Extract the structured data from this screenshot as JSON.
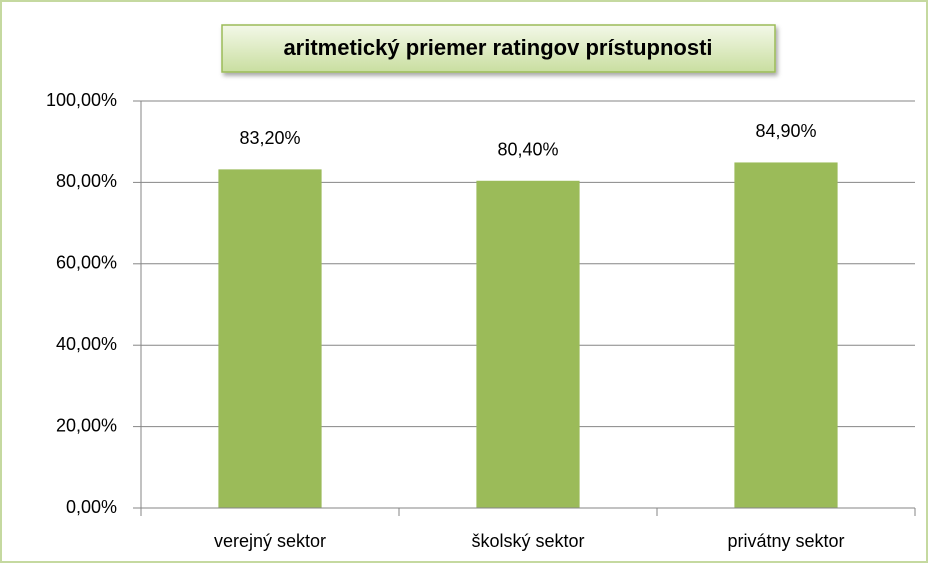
{
  "chart_data": {
    "type": "bar",
    "title": "aritmetický priemer ratingov prístupnosti",
    "categories": [
      "verejný sektor",
      "školský sektor",
      "privátny sektor"
    ],
    "values": [
      83.2,
      80.4,
      84.9
    ],
    "value_labels": [
      "83,20%",
      "80,40%",
      "84,90%"
    ],
    "color": "#9bbb59",
    "ylim": [
      0,
      100
    ],
    "yticks": [
      {
        "value": 0,
        "label": "0,00%"
      },
      {
        "value": 20,
        "label": "20,00%"
      },
      {
        "value": 40,
        "label": "40,00%"
      },
      {
        "value": 60,
        "label": "60,00%"
      },
      {
        "value": 80,
        "label": "80,00%"
      },
      {
        "value": 100,
        "label": "100,00%"
      }
    ],
    "grid": true
  }
}
